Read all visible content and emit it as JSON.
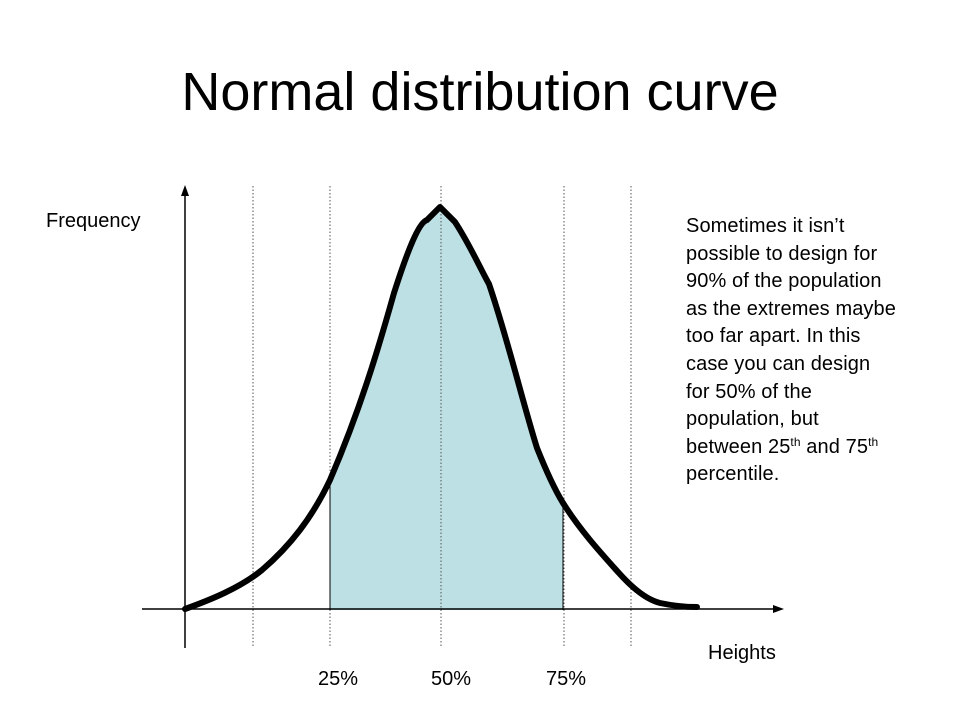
{
  "title": "Normal distribution curve",
  "y_axis_label": "Frequency",
  "x_axis_label": "Heights",
  "percentile_ticks": [
    "25%",
    "50%",
    "75%"
  ],
  "note": {
    "line1": "Sometimes it isn’t",
    "line2": "possible to design for",
    "line3": "90% of the population",
    "line4": "as the extremes maybe",
    "line5": "too far apart. In this",
    "line6": "case you can design",
    "line7": "for 50% of the",
    "line8": "population, but",
    "line9_pre": "between 25",
    "line9_sup1": "th",
    "line9_mid": " and 75",
    "line9_sup2": "th",
    "line10": "percentile."
  },
  "colors": {
    "shaded_region": "#bde0e4",
    "curve": "#000000",
    "gridline": "#555555"
  }
}
